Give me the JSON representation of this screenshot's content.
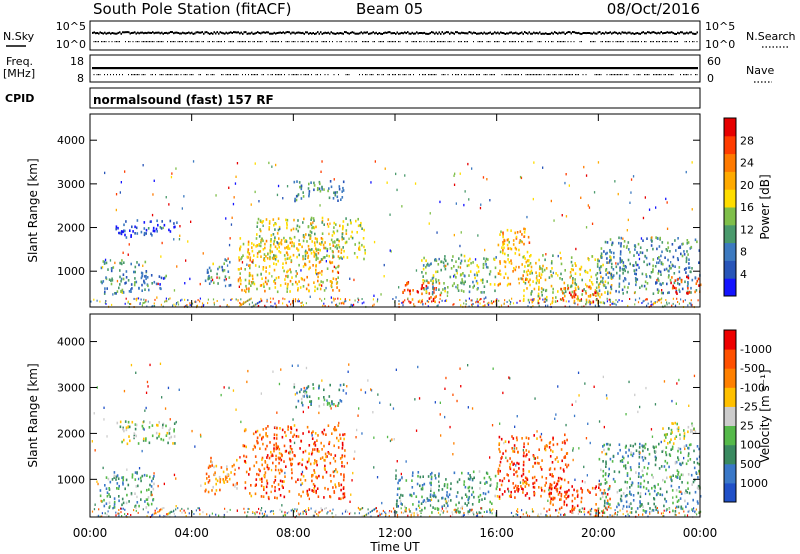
{
  "header": {
    "station": "South Pole Station (fitACF)",
    "beam": "Beam 05",
    "date": "08/Oct/2016"
  },
  "strip_labels": {
    "nsky": "N.Sky",
    "freq": "Freq.",
    "freq_unit": "[MHz]",
    "cpid": "CPID",
    "nsearch": "N.Search",
    "nave": "Nave",
    "noise_ticks": [
      "10^5",
      "10^0"
    ],
    "freq_ticks": [
      "18",
      "8"
    ],
    "nave_ticks": [
      "60",
      "0"
    ],
    "nsearch_ticks": [
      "10^5",
      "10^0"
    ]
  },
  "program": "normalsound (fast) 157 RF",
  "chart_data": [
    {
      "type": "heatmap",
      "title": "",
      "xlabel": "Time UT",
      "ylabel": "Slant Range [km]",
      "x_ticks": [
        "00:00",
        "04:00",
        "08:00",
        "12:00",
        "16:00",
        "20:00",
        "00:00"
      ],
      "y_ticks": [
        1000,
        2000,
        3000,
        4000
      ],
      "xlim": [
        0,
        24
      ],
      "ylim": [
        180,
        4600
      ],
      "colorbar_label": "Power [dB]",
      "colorbar_ticks": [
        "4",
        "8",
        "12",
        "16",
        "20",
        "24",
        "28"
      ],
      "colorbar_colors": [
        "#1414ff",
        "#2855b8",
        "#3d7ac0",
        "#4a9a6c",
        "#7fbf4a",
        "#ffdd00",
        "#ffaa00",
        "#ff7a00",
        "#ff3c00",
        "#e60000"
      ],
      "regions": [
        {
          "t0": 0.4,
          "t1": 2.2,
          "r0": 500,
          "r1": 1300,
          "level": 0.3
        },
        {
          "t0": 1.0,
          "t1": 3.4,
          "r0": 1800,
          "r1": 2200,
          "level": 0.15
        },
        {
          "t0": 2.0,
          "t1": 3.0,
          "r0": 600,
          "r1": 1000,
          "level": 0.25
        },
        {
          "t0": 4.5,
          "t1": 5.5,
          "r0": 700,
          "r1": 1300,
          "level": 0.35
        },
        {
          "t0": 5.8,
          "t1": 9.8,
          "r0": 550,
          "r1": 1800,
          "level": 0.6
        },
        {
          "t0": 6.5,
          "t1": 10.8,
          "r0": 1300,
          "r1": 2250,
          "level": 0.5
        },
        {
          "t0": 8.0,
          "t1": 10.0,
          "r0": 2600,
          "r1": 3100,
          "level": 0.3
        },
        {
          "t0": 12.2,
          "t1": 13.8,
          "r0": 300,
          "r1": 800,
          "level": 0.85
        },
        {
          "t0": 13.0,
          "t1": 16.0,
          "r0": 500,
          "r1": 1400,
          "level": 0.4
        },
        {
          "t0": 16.0,
          "t1": 17.3,
          "r0": 700,
          "r1": 2000,
          "level": 0.65
        },
        {
          "t0": 17.0,
          "t1": 20.5,
          "r0": 300,
          "r1": 1400,
          "level": 0.5
        },
        {
          "t0": 18.5,
          "t1": 20.0,
          "r0": 300,
          "r1": 700,
          "level": 0.8
        },
        {
          "t0": 20.0,
          "t1": 24.0,
          "r0": 500,
          "r1": 1800,
          "level": 0.3
        },
        {
          "t0": 22.8,
          "t1": 24.0,
          "r0": 500,
          "r1": 900,
          "level": 0.9
        }
      ]
    },
    {
      "type": "heatmap",
      "title": "",
      "xlabel": "Time UT",
      "ylabel": "Slant Range [km]",
      "x_ticks": [
        "00:00",
        "04:00",
        "08:00",
        "12:00",
        "16:00",
        "20:00",
        "00:00"
      ],
      "y_ticks": [
        1000,
        2000,
        3000,
        4000
      ],
      "xlim": [
        0,
        24
      ],
      "ylim": [
        180,
        4600
      ],
      "colorbar_label": "Velocity [m s⁻¹]",
      "colorbar_ticks": [
        "1000",
        "500",
        "100",
        "25",
        "-25",
        "-100",
        "-500",
        "-1000"
      ],
      "colorbar_colors": [
        "#2050c8",
        "#3a78c8",
        "#3a8a60",
        "#55b94a",
        "#cccccc",
        "#ffc000",
        "#ff8000",
        "#ff5000",
        "#ee0000"
      ],
      "regions": [
        {
          "t0": 0.3,
          "t1": 2.5,
          "r0": 400,
          "r1": 1200,
          "level": 0.3
        },
        {
          "t0": 1.0,
          "t1": 3.4,
          "r0": 1800,
          "r1": 2300,
          "level": 0.45
        },
        {
          "t0": 4.5,
          "t1": 5.8,
          "r0": 700,
          "r1": 1500,
          "level": 0.7
        },
        {
          "t0": 6.0,
          "t1": 10.0,
          "r0": 600,
          "r1": 2200,
          "level": 0.8
        },
        {
          "t0": 8.0,
          "t1": 10.0,
          "r0": 2600,
          "r1": 3100,
          "level": 0.3
        },
        {
          "t0": 12.0,
          "t1": 16.0,
          "r0": 300,
          "r1": 1200,
          "level": 0.3
        },
        {
          "t0": 16.0,
          "t1": 18.8,
          "r0": 600,
          "r1": 2000,
          "level": 0.82
        },
        {
          "t0": 18.0,
          "t1": 20.5,
          "r0": 300,
          "r1": 900,
          "level": 0.85
        },
        {
          "t0": 20.0,
          "t1": 24.0,
          "r0": 300,
          "r1": 1800,
          "level": 0.3
        },
        {
          "t0": 22.5,
          "t1": 24.0,
          "r0": 1800,
          "r1": 2300,
          "level": 0.5
        }
      ]
    }
  ]
}
